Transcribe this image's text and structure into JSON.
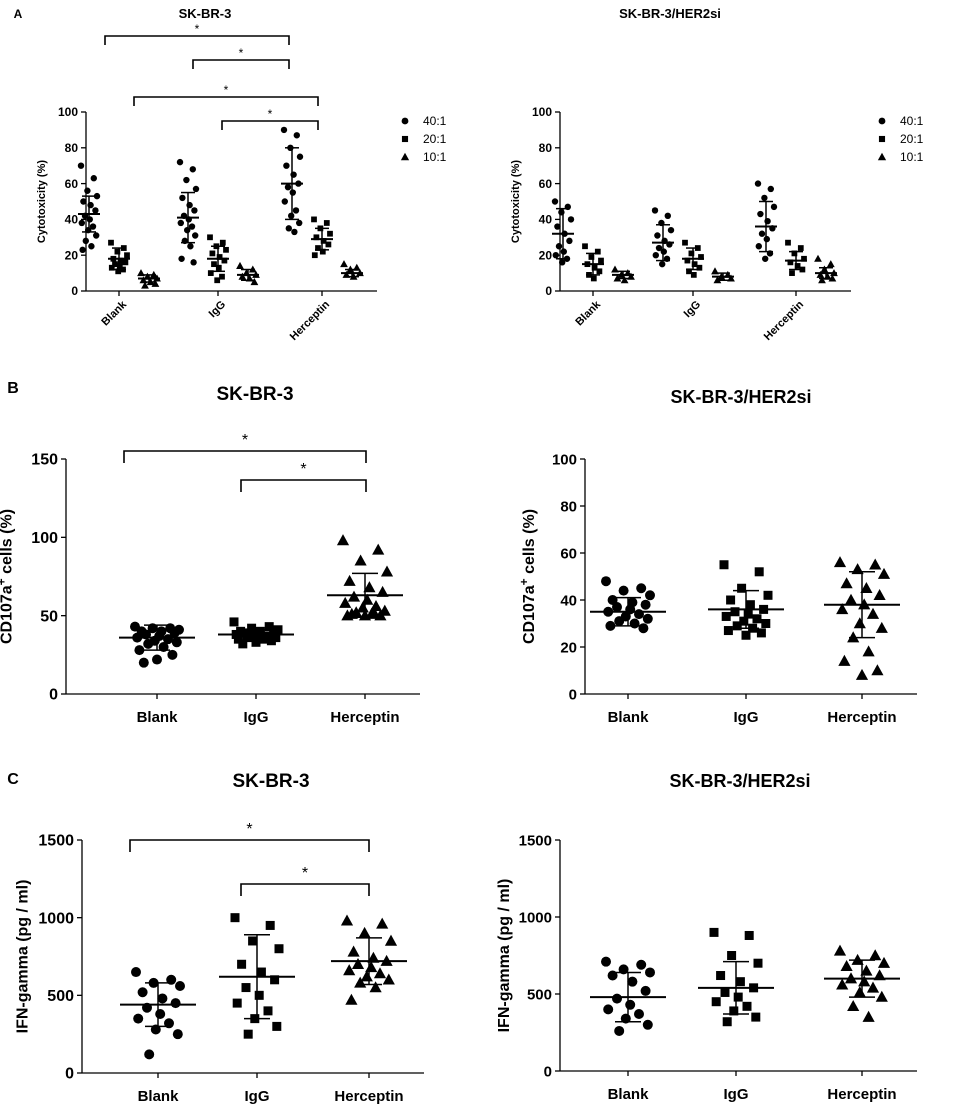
{
  "chart_data": [
    {
      "panel": "A",
      "type": "scatter",
      "title": "SK-BR-3",
      "ylabel": "Cytotoxicity (%)",
      "xlabel": "",
      "categories": [
        "Blank",
        "IgG",
        "Herceptin"
      ],
      "ylim": [
        0,
        100
      ],
      "yticks": [
        0,
        20,
        40,
        60,
        80,
        100
      ],
      "legend": [
        "40:1",
        "20:1",
        "10:1"
      ],
      "series": [
        {
          "name": "40:1",
          "marker": "circle",
          "values": [
            [
              70,
              63,
              56,
              53,
              50,
              48,
              45,
              42,
              40,
              38,
              36,
              34,
              31,
              28,
              25,
              23
            ],
            [
              72,
              68,
              62,
              57,
              52,
              48,
              45,
              42,
              40,
              38,
              36,
              34,
              31,
              28,
              25,
              18,
              16
            ],
            [
              90,
              87,
              80,
              75,
              70,
              65,
              60,
              58,
              55,
              50,
              45,
              42,
              38,
              35,
              33
            ]
          ],
          "mean": [
            43,
            41,
            60
          ],
          "sd": [
            10,
            14,
            20
          ]
        },
        {
          "name": "20:1",
          "marker": "square",
          "values": [
            [
              27,
              24,
              22,
              20,
              18,
              17,
              16,
              15,
              14,
              13,
              12,
              11
            ],
            [
              30,
              27,
              25,
              23,
              21,
              19,
              17,
              15,
              13,
              10,
              8,
              6
            ],
            [
              40,
              38,
              35,
              32,
              30,
              28,
              26,
              24,
              22,
              20
            ]
          ],
          "mean": [
            18,
            18,
            29
          ],
          "sd": [
            6,
            7,
            6
          ]
        },
        {
          "name": "10:1",
          "marker": "triangle",
          "values": [
            [
              10,
              9,
              8,
              7,
              6,
              5,
              4,
              3
            ],
            [
              14,
              12,
              10,
              9,
              8,
              7,
              5
            ],
            [
              15,
              13,
              12,
              10,
              9,
              8
            ]
          ],
          "mean": [
            7,
            9,
            10
          ],
          "sd": [
            2,
            3,
            2
          ]
        }
      ],
      "significance": [
        {
          "from": "Blank",
          "to": "Herceptin",
          "label": "*"
        },
        {
          "from": "IgG",
          "to": "Herceptin",
          "label": "*"
        },
        {
          "from": "Blank",
          "to": "Herceptin",
          "label": "*"
        },
        {
          "from": "IgG",
          "to": "Herceptin",
          "label": "*"
        }
      ]
    },
    {
      "panel": "",
      "type": "scatter",
      "title": "SK-BR-3/HER2si",
      "ylabel": "Cytotoxicity (%)",
      "xlabel": "",
      "categories": [
        "Blank",
        "IgG",
        "Herceptin"
      ],
      "ylim": [
        0,
        100
      ],
      "yticks": [
        0,
        20,
        40,
        60,
        80,
        100
      ],
      "legend": [
        "40:1",
        "20:1",
        "10:1"
      ],
      "series": [
        {
          "name": "40:1",
          "marker": "circle",
          "values": [
            [
              50,
              47,
              44,
              40,
              36,
              32,
              28,
              25,
              22,
              20,
              18,
              16
            ],
            [
              45,
              42,
              38,
              34,
              31,
              28,
              26,
              24,
              22,
              20,
              18,
              15
            ],
            [
              60,
              57,
              52,
              47,
              43,
              39,
              35,
              32,
              29,
              25,
              21,
              18
            ]
          ],
          "mean": [
            32,
            27,
            36
          ],
          "sd": [
            14,
            10,
            14
          ]
        },
        {
          "name": "20:1",
          "marker": "square",
          "values": [
            [
              25,
              22,
              19,
              17,
              15,
              13,
              11,
              9,
              7
            ],
            [
              27,
              24,
              21,
              19,
              17,
              15,
              13,
              11,
              9
            ],
            [
              27,
              24,
              21,
              18,
              16,
              14,
              12,
              10
            ]
          ],
          "mean": [
            15,
            18,
            17
          ],
          "sd": [
            6,
            6,
            5
          ]
        },
        {
          "name": "10:1",
          "marker": "triangle",
          "values": [
            [
              12,
              10,
              9,
              8,
              7,
              6
            ],
            [
              11,
              9,
              8,
              7,
              6
            ],
            [
              18,
              15,
              12,
              10,
              9,
              8,
              7,
              6
            ]
          ],
          "mean": [
            9,
            8,
            10
          ],
          "sd": [
            2,
            2,
            3
          ]
        }
      ],
      "significance": []
    },
    {
      "panel": "B",
      "type": "scatter",
      "title": "SK-BR-3",
      "ylabel": "CD107a+ cells (%)",
      "xlabel": "",
      "categories": [
        "Blank",
        "IgG",
        "Herceptin"
      ],
      "ylim": [
        0,
        150
      ],
      "yticks": [
        0,
        50,
        100,
        150
      ],
      "series": [
        {
          "name": "Blank",
          "marker": "circle",
          "values": [
            43,
            42,
            42,
            41,
            40,
            40,
            39,
            38,
            37,
            36,
            35,
            34,
            33,
            32,
            30,
            28,
            25,
            22,
            20
          ]
        },
        {
          "name": "IgG",
          "marker": "square",
          "values": [
            46,
            43,
            42,
            41,
            40,
            40,
            39,
            39,
            38,
            38,
            37,
            37,
            36,
            36,
            35,
            35,
            34,
            33,
            32
          ]
        },
        {
          "name": "Herceptin",
          "marker": "triangle",
          "values": [
            98,
            92,
            85,
            78,
            72,
            68,
            65,
            62,
            60,
            58,
            56,
            55,
            53,
            52,
            51,
            50,
            50,
            50,
            51,
            52
          ]
        }
      ],
      "mean": [
        36,
        38,
        63
      ],
      "sd": [
        8,
        3,
        14
      ],
      "significance": [
        {
          "from": "Blank",
          "to": "Herceptin",
          "label": "*"
        },
        {
          "from": "IgG",
          "to": "Herceptin",
          "label": "*"
        }
      ]
    },
    {
      "panel": "",
      "type": "scatter",
      "title": "SK-BR-3/HER2si",
      "ylabel": "CD107a+ cells  (%)",
      "xlabel": "",
      "categories": [
        "Blank",
        "IgG",
        "Herceptin"
      ],
      "ylim": [
        0,
        100
      ],
      "yticks": [
        0,
        20,
        40,
        60,
        80,
        100
      ],
      "series": [
        {
          "name": "Blank",
          "marker": "circle",
          "values": [
            48,
            45,
            44,
            42,
            40,
            39,
            38,
            37,
            36,
            35,
            34,
            33,
            32,
            31,
            30,
            29,
            28
          ]
        },
        {
          "name": "IgG",
          "marker": "square",
          "values": [
            55,
            52,
            45,
            42,
            40,
            38,
            36,
            35,
            34,
            33,
            32,
            31,
            30,
            29,
            28,
            27,
            26,
            25
          ]
        },
        {
          "name": "Herceptin",
          "marker": "triangle",
          "values": [
            56,
            55,
            53,
            51,
            47,
            45,
            42,
            40,
            38,
            36,
            34,
            30,
            28,
            24,
            18,
            14,
            10,
            8
          ]
        }
      ],
      "mean": [
        35,
        36,
        38
      ],
      "sd": [
        6,
        8,
        14
      ],
      "significance": []
    },
    {
      "panel": "C",
      "type": "scatter",
      "title": "SK-BR-3",
      "ylabel": "IFN-gamma (pg / ml)",
      "xlabel": "",
      "categories": [
        "Blank",
        "IgG",
        "Herceptin"
      ],
      "ylim": [
        0,
        1500
      ],
      "yticks": [
        0,
        500,
        1000,
        1500
      ],
      "series": [
        {
          "name": "Blank",
          "marker": "circle",
          "values": [
            650,
            600,
            580,
            560,
            520,
            480,
            450,
            420,
            380,
            350,
            320,
            280,
            250,
            120
          ]
        },
        {
          "name": "IgG",
          "marker": "square",
          "values": [
            1000,
            950,
            850,
            800,
            700,
            650,
            600,
            550,
            500,
            450,
            400,
            350,
            300,
            250
          ]
        },
        {
          "name": "Herceptin",
          "marker": "triangle",
          "values": [
            980,
            960,
            900,
            850,
            780,
            740,
            720,
            700,
            680,
            660,
            640,
            620,
            600,
            580,
            550,
            470
          ]
        }
      ],
      "mean": [
        440,
        620,
        720
      ],
      "sd": [
        140,
        270,
        150
      ],
      "significance": [
        {
          "from": "Blank",
          "to": "Herceptin",
          "label": "*"
        },
        {
          "from": "IgG",
          "to": "Herceptin",
          "label": "*"
        }
      ]
    },
    {
      "panel": "",
      "type": "scatter",
      "title": "SK-BR-3/HER2si",
      "ylabel": "IFN-gamma (pg / ml)",
      "xlabel": "",
      "categories": [
        "Blank",
        "IgG",
        "Herceptin"
      ],
      "ylim": [
        0,
        1500
      ],
      "yticks": [
        0,
        500,
        1000,
        1500
      ],
      "series": [
        {
          "name": "Blank",
          "marker": "circle",
          "values": [
            710,
            690,
            660,
            640,
            620,
            580,
            520,
            470,
            430,
            400,
            370,
            340,
            300,
            260
          ]
        },
        {
          "name": "IgG",
          "marker": "square",
          "values": [
            900,
            880,
            750,
            700,
            620,
            580,
            540,
            510,
            480,
            450,
            420,
            390,
            350,
            320
          ]
        },
        {
          "name": "Herceptin",
          "marker": "triangle",
          "values": [
            780,
            750,
            720,
            700,
            680,
            650,
            620,
            600,
            580,
            560,
            540,
            510,
            480,
            420,
            350
          ]
        }
      ],
      "mean": [
        480,
        540,
        600
      ],
      "sd": [
        160,
        170,
        120
      ],
      "significance": []
    }
  ]
}
